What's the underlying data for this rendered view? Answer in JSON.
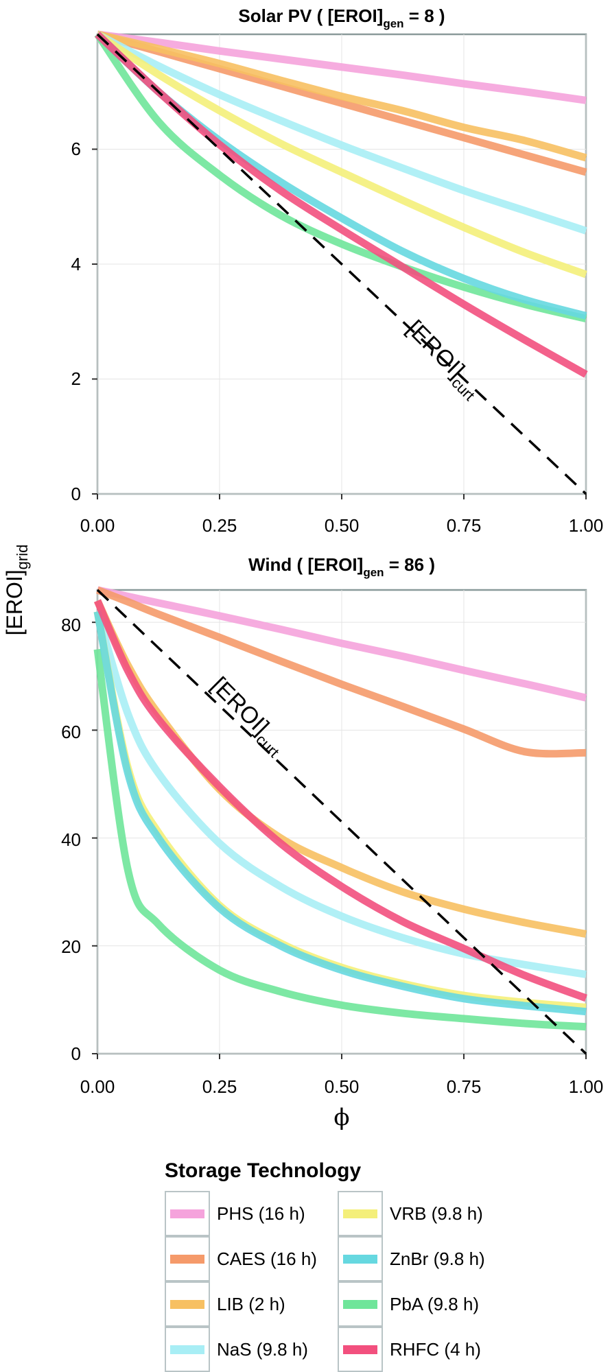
{
  "shared_ylabel": {
    "main": "[EROI]",
    "sub": "grid"
  },
  "xlabel": "ϕ",
  "curt_label": {
    "main": "[EROI]",
    "sub": "curt"
  },
  "legend": {
    "title": "Storage Technology",
    "items": [
      {
        "label": "PHS (16 h)",
        "color": "#f5a3dc"
      },
      {
        "label": "VRB (9.8 h)",
        "color": "#f4ef7a"
      },
      {
        "label": "CAES (16 h)",
        "color": "#f59a6a"
      },
      {
        "label": "ZnBr (9.8 h)",
        "color": "#66d8e0"
      },
      {
        "label": "LIB (2 h)",
        "color": "#f7c062"
      },
      {
        "label": "PbA (9.8 h)",
        "color": "#6fe59a"
      },
      {
        "label": "NaS (9.8 h)",
        "color": "#a8eef5"
      },
      {
        "label": "RHFC (4 h)",
        "color": "#f2507e"
      }
    ]
  },
  "chart_data": [
    {
      "type": "line",
      "title_pre": "Solar PV ( [EROI]",
      "title_sub": "gen",
      "title_post": " = 8 )",
      "xlim": [
        0,
        1
      ],
      "ylim": [
        0,
        8
      ],
      "x_ticks": [
        "0.00",
        "0.25",
        "0.50",
        "0.75",
        "1.00"
      ],
      "y_ticks": [
        "0",
        "2",
        "4",
        "6"
      ],
      "x": [
        0,
        0.125,
        0.25,
        0.375,
        0.5,
        0.625,
        0.75,
        0.875,
        1.0
      ],
      "series": [
        {
          "name": "PHS (16 h)",
          "color": "#f5a3dc",
          "values": [
            8.0,
            7.86,
            7.71,
            7.57,
            7.43,
            7.29,
            7.14,
            7.0,
            6.85
          ]
        },
        {
          "name": "CAES (16 h)",
          "color": "#f59a6a",
          "values": [
            8.0,
            7.7,
            7.4,
            7.1,
            6.8,
            6.5,
            6.2,
            5.9,
            5.6
          ]
        },
        {
          "name": "LIB (2 h)",
          "color": "#f7c062",
          "values": [
            8.0,
            7.75,
            7.49,
            7.2,
            6.92,
            6.67,
            6.38,
            6.15,
            5.85
          ]
        },
        {
          "name": "NaS (9.8 h)",
          "color": "#a8eef5",
          "values": [
            8.0,
            7.45,
            6.95,
            6.5,
            6.07,
            5.67,
            5.28,
            4.93,
            4.58
          ]
        },
        {
          "name": "VRB (9.8 h)",
          "color": "#f4ef7a",
          "values": [
            8.0,
            7.3,
            6.67,
            6.1,
            5.6,
            5.11,
            4.64,
            4.2,
            3.82
          ]
        },
        {
          "name": "ZnBr (9.8 h)",
          "color": "#66d8e0",
          "values": [
            8.0,
            7.0,
            6.15,
            5.43,
            4.8,
            4.22,
            3.75,
            3.38,
            3.1
          ]
        },
        {
          "name": "PbA (9.8 h)",
          "color": "#6fe59a",
          "values": [
            8.0,
            6.48,
            5.55,
            4.85,
            4.35,
            3.95,
            3.6,
            3.3,
            3.05
          ]
        },
        {
          "name": "RHFC (4 h)",
          "color": "#f2507e",
          "values": [
            8.0,
            7.0,
            6.08,
            5.28,
            4.6,
            3.95,
            3.3,
            2.68,
            2.08
          ]
        }
      ],
      "curt_line": {
        "x": [
          0,
          1
        ],
        "y": [
          8,
          0
        ]
      }
    },
    {
      "type": "line",
      "title_pre": "Wind ( [EROI]",
      "title_sub": "gen",
      "title_post": " = 86 )",
      "xlim": [
        0,
        1
      ],
      "ylim": [
        0,
        86
      ],
      "x_ticks": [
        "0.00",
        "0.25",
        "0.50",
        "0.75",
        "1.00"
      ],
      "y_ticks": [
        "0",
        "20",
        "40",
        "60",
        "80"
      ],
      "x": [
        0,
        0.0625,
        0.125,
        0.25,
        0.375,
        0.5,
        0.625,
        0.75,
        0.875,
        1.0
      ],
      "series": [
        {
          "name": "PHS (16 h)",
          "color": "#f5a3dc",
          "values": [
            86,
            84.8,
            83.6,
            81.2,
            78.7,
            76.1,
            73.7,
            71.1,
            68.6,
            66.0
          ]
        },
        {
          "name": "CAES (16 h)",
          "color": "#f59a6a",
          "values": [
            86,
            83.8,
            81.5,
            77.2,
            72.8,
            68.5,
            64.4,
            60.2,
            56.0,
            55.8
          ]
        },
        {
          "name": "LIB (2 h)",
          "color": "#f7c062",
          "values": [
            84,
            72,
            63,
            49,
            40,
            34.5,
            30,
            26.8,
            24.3,
            22.2
          ]
        },
        {
          "name": "NaS (9.8 h)",
          "color": "#a8eef5",
          "values": [
            82,
            63,
            52,
            39,
            31,
            25.5,
            21.5,
            18.5,
            16.5,
            14.7
          ]
        },
        {
          "name": "VRB (9.8 h)",
          "color": "#f4ef7a",
          "values": [
            82,
            53,
            41,
            27.5,
            20.5,
            16,
            13,
            10.8,
            9.5,
            8.6
          ]
        },
        {
          "name": "ZnBr (9.8 h)",
          "color": "#66d8e0",
          "values": [
            82,
            52,
            40,
            27,
            20,
            15.5,
            12.5,
            10.2,
            8.9,
            7.8
          ]
        },
        {
          "name": "PbA (9.8 h)",
          "color": "#6fe59a",
          "values": [
            75,
            34,
            24,
            15.5,
            11.5,
            9,
            7.5,
            6.5,
            5.6,
            5.0
          ]
        },
        {
          "name": "RHFC (4 h)",
          "color": "#f2507e",
          "values": [
            84,
            71,
            62,
            49.5,
            39,
            31,
            24.5,
            19.5,
            14.5,
            10.3
          ]
        }
      ],
      "curt_line": {
        "x": [
          0,
          1
        ],
        "y": [
          86,
          0
        ]
      }
    }
  ]
}
